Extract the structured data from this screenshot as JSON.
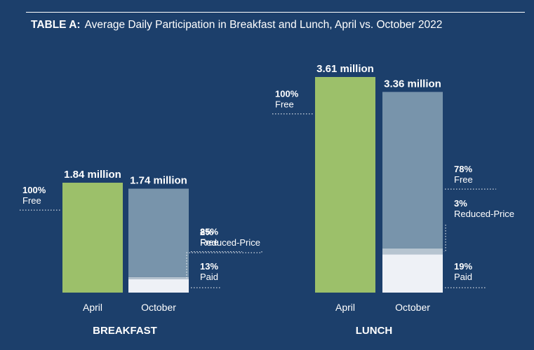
{
  "header": {
    "table_label": "TABLE A:",
    "title": "Average Daily Participation in Breakfast and Lunch, April vs. October 2022"
  },
  "colors": {
    "background": "#1c3f6b",
    "april_bar": "#9cc06a",
    "free": "#7894ab",
    "reduced_price": "#b6c4d0",
    "paid": "#eef1f6",
    "text": "#ffffff"
  },
  "chart_data": [
    {
      "type": "bar",
      "panel": "BREAKFAST",
      "unit": "million",
      "ylim": [
        0,
        3.61
      ],
      "bars": [
        {
          "category": "April",
          "total": 1.84,
          "total_label": "1.84 million",
          "segments": [
            {
              "name": "Free",
              "share": 100,
              "label_pct": "100%",
              "label_name": "Free"
            }
          ]
        },
        {
          "category": "October",
          "total": 1.74,
          "total_label": "1.74 million",
          "segments": [
            {
              "name": "Free",
              "share": 85,
              "label_pct": "85%",
              "label_name": "Free"
            },
            {
              "name": "Reduced-Price",
              "share": 2,
              "label_pct": "2%",
              "label_name": "Reduced-Price"
            },
            {
              "name": "Paid",
              "share": 13,
              "label_pct": "13%",
              "label_name": "Paid"
            }
          ]
        }
      ]
    },
    {
      "type": "bar",
      "panel": "LUNCH",
      "unit": "million",
      "ylim": [
        0,
        3.61
      ],
      "bars": [
        {
          "category": "April",
          "total": 3.61,
          "total_label": "3.61 million",
          "segments": [
            {
              "name": "Free",
              "share": 100,
              "label_pct": "100%",
              "label_name": "Free"
            }
          ]
        },
        {
          "category": "October",
          "total": 3.36,
          "total_label": "3.36 million",
          "segments": [
            {
              "name": "Free",
              "share": 78,
              "label_pct": "78%",
              "label_name": "Free"
            },
            {
              "name": "Reduced-Price",
              "share": 3,
              "label_pct": "3%",
              "label_name": "Reduced-Price"
            },
            {
              "name": "Paid",
              "share": 19,
              "label_pct": "19%",
              "label_name": "Paid"
            }
          ]
        }
      ]
    }
  ]
}
